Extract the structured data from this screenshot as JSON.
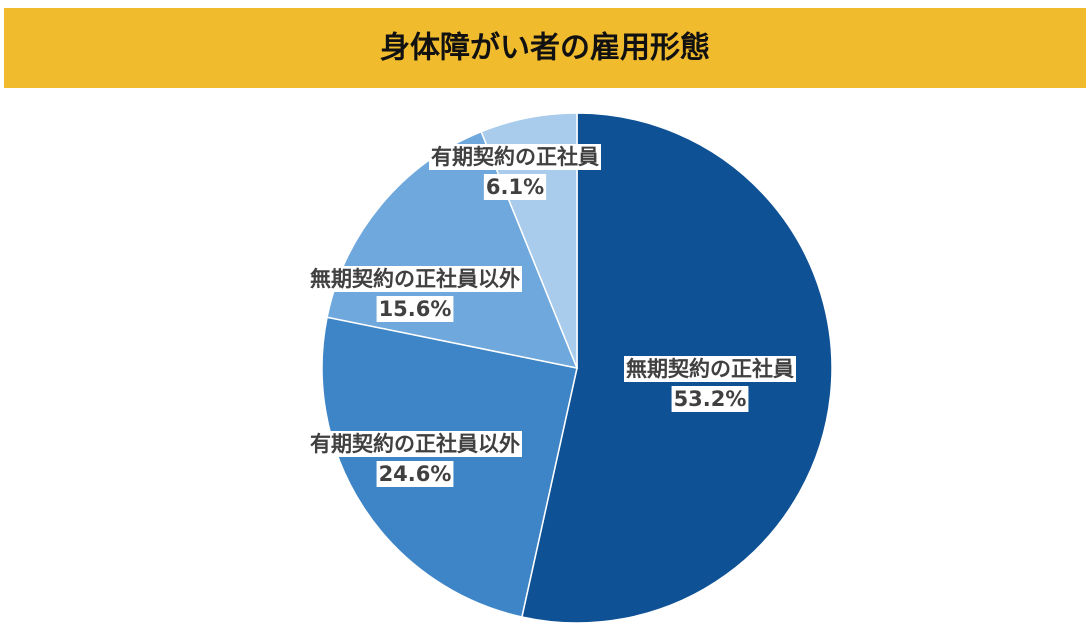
{
  "chart_data": {
    "type": "pie",
    "title": "身体障がい者の雇用形態",
    "categories": [
      "無期契約の正社員",
      "有期契約の正社員以外",
      "無期契約の正社員以外",
      "有期契約の正社員"
    ],
    "values": [
      53.2,
      24.6,
      15.6,
      6.1
    ],
    "value_labels": [
      "53.2%",
      "24.6%",
      "15.6%",
      "6.1%"
    ],
    "colors": [
      "#0e5195",
      "#3d85c6",
      "#6fa8dc",
      "#a9cbec"
    ]
  }
}
